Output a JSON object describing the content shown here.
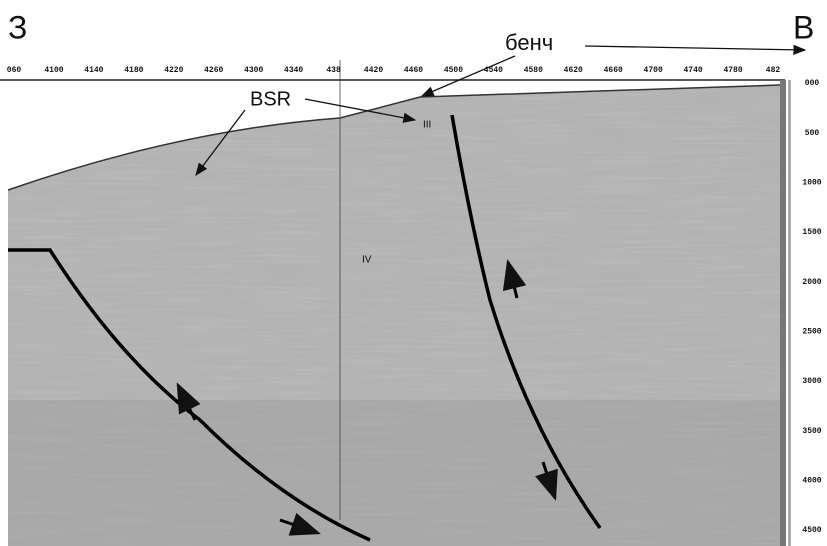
{
  "labels": {
    "west": "З",
    "east": "В",
    "bench": "бенч",
    "bsr": "BSR",
    "horizon_3": "III",
    "horizon_4": "IV"
  },
  "top_axis": [
    "060",
    "4100",
    "4140",
    "4180",
    "4220",
    "4260",
    "4300",
    "4340",
    "438",
    "4420",
    "4460",
    "4500",
    "4540",
    "4580",
    "4620",
    "4660",
    "4700",
    "4740",
    "4780",
    "482"
  ],
  "right_axis": [
    "000",
    "500",
    "1000",
    "1500",
    "2000",
    "2500",
    "3000",
    "3500",
    "4000",
    "4500"
  ]
}
